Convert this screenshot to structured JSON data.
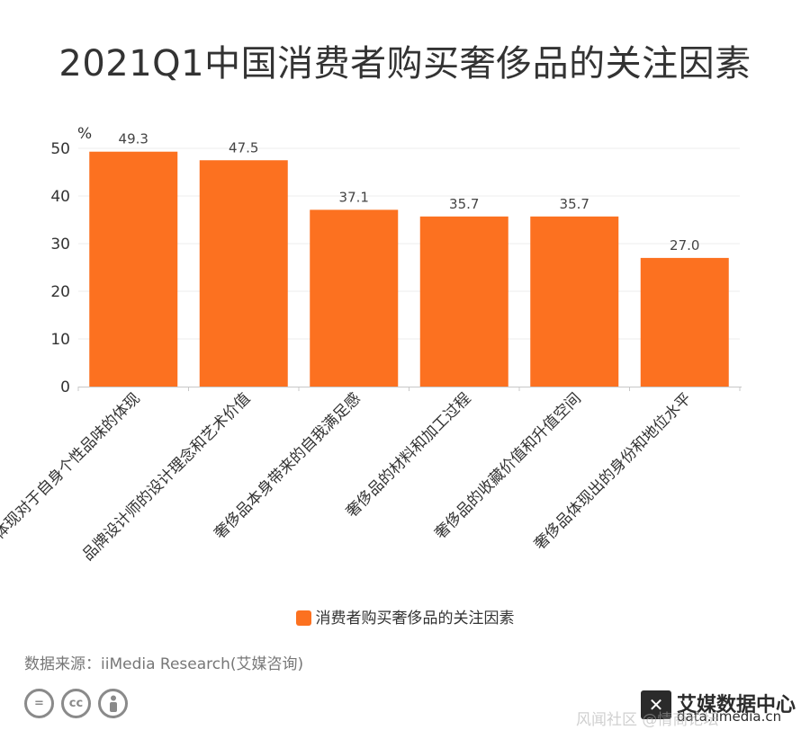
{
  "title": "2021Q1中国消费者购买奢侈品的关注因素",
  "chart_data": {
    "type": "bar",
    "title": "2021Q1中国消费者购买奢侈品的关注因素",
    "ylabel": "%",
    "xlabel": "",
    "ylim": [
      0,
      50
    ],
    "yticks": [
      0,
      10,
      20,
      30,
      40,
      50
    ],
    "grid": true,
    "legend_position": "bottom",
    "categories": [
      "奢侈品能够体现对于自身个性品味的体现",
      "品牌设计师的设计理念和艺术价值",
      "奢侈品本身带来的自我满足感",
      "奢侈品的材料和加工过程",
      "奢侈品的收藏价值和升值空间",
      "奢侈品体现出的身份和地位水平"
    ],
    "series": [
      {
        "name": "消费者购买奢侈品的关注因素",
        "values": [
          49.3,
          47.5,
          37.1,
          35.7,
          35.7,
          27.0
        ],
        "color": "#FC7120"
      }
    ],
    "data_labels": [
      "49.3",
      "47.5",
      "37.1",
      "35.7",
      "35.7",
      "27.0"
    ]
  },
  "legend": {
    "label": "消费者购买奢侈品的关注因素"
  },
  "source": "数据来源：iiMedia Research(艾媒咨询)",
  "license_icons": [
    "equal-icon",
    "cc-icon",
    "person-icon"
  ],
  "brand": {
    "name": "艾媒数据中心",
    "url": "data.iimedia.cn"
  },
  "watermark": "风闻社区 @情商论坛"
}
